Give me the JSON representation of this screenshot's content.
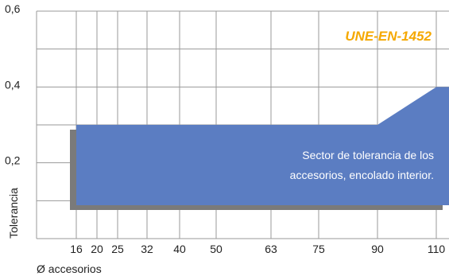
{
  "chart_data": {
    "type": "area",
    "title": "",
    "standard": "UNE-EN-1452",
    "ylabel": "Tolerancia",
    "xlabel": "Ø accesorios",
    "x": [
      "16",
      "20",
      "25",
      "32",
      "40",
      "50",
      "63",
      "75",
      "90",
      "110"
    ],
    "y_ticks": [
      "0,6",
      "0,4",
      "0,2"
    ],
    "ylim": [
      0,
      0.6
    ],
    "grid": true,
    "series": [
      {
        "lower": [
          0.0,
          0.0,
          0.0,
          0.0,
          0.0,
          0.0,
          0.0,
          0.0,
          0.0,
          0.0
        ],
        "upper": [
          0.3,
          0.3,
          0.3,
          0.3,
          0.3,
          0.3,
          0.3,
          0.3,
          0.3,
          0.4
        ]
      }
    ],
    "annotation": [
      "Sector de tolerancia de los",
      "accesorios, encolado interior."
    ],
    "colors": {
      "fill": "#5b7dc2",
      "shadow": "#7a7a7a",
      "grid": "#9a9a9a",
      "standard": "#f5a800"
    }
  }
}
